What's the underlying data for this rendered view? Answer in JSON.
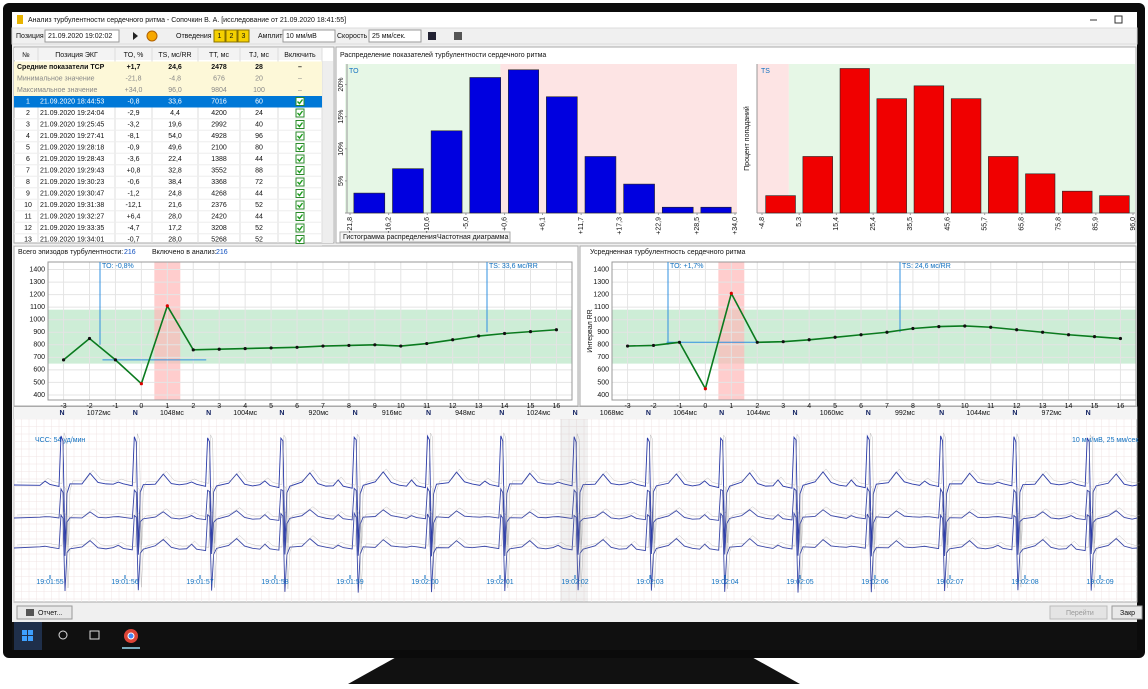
{
  "window": {
    "title": "Анализ турбулентности сердечного ритма - Сопочкин В. А. [исследование от 21.09.2020 18:41:55]",
    "toolbar": {
      "position_label": "Позиция",
      "position": "21.09.2020 19:02:02",
      "leads_label": "Отведения",
      "leads": [
        "1",
        "2",
        "3"
      ],
      "amplitude_label": "Амплитуда",
      "amplitude": "10 мм/мВ",
      "speed_label": "Скорость",
      "speed": "25 мм/сек."
    }
  },
  "table": {
    "headers": [
      "№",
      "Позиция ЭКГ",
      "TO, %",
      "TS, мс/RR",
      "TT, мс",
      "TJ, мс",
      "Включить"
    ],
    "summary": [
      [
        "Средние показатели ТСР",
        "+1,7",
        "24,6",
        "2478",
        "28",
        "–"
      ],
      [
        "Минимальное значение",
        "-21,8",
        "-4,8",
        "676",
        "20",
        "–"
      ],
      [
        "Максимальное значение",
        "+34,0",
        "96,0",
        "9804",
        "100",
        "–"
      ]
    ],
    "rows": [
      [
        "1",
        "21.09.2020 18:44:53",
        "-0,8",
        "33,6",
        "7016",
        "60"
      ],
      [
        "2",
        "21.09.2020 19:24:04",
        "-2,9",
        "4,4",
        "4200",
        "24"
      ],
      [
        "3",
        "21.09.2020 19:25:45",
        "-3,2",
        "19,6",
        "2992",
        "40"
      ],
      [
        "4",
        "21.09.2020 19:27:41",
        "-8,1",
        "54,0",
        "4928",
        "96"
      ],
      [
        "5",
        "21.09.2020 19:28:18",
        "-0,9",
        "49,6",
        "2100",
        "80"
      ],
      [
        "6",
        "21.09.2020 19:28:43",
        "-3,6",
        "22,4",
        "1388",
        "44"
      ],
      [
        "7",
        "21.09.2020 19:29:43",
        "+0,8",
        "32,8",
        "3552",
        "88"
      ],
      [
        "8",
        "21.09.2020 19:30:23",
        "-0,6",
        "38,4",
        "3368",
        "72"
      ],
      [
        "9",
        "21.09.2020 19:30:47",
        "-1,2",
        "24,8",
        "4268",
        "44"
      ],
      [
        "10",
        "21.09.2020 19:31:38",
        "-12,1",
        "21,6",
        "2376",
        "52"
      ],
      [
        "11",
        "21.09.2020 19:32:27",
        "+6,4",
        "28,0",
        "2420",
        "44"
      ],
      [
        "12",
        "21.09.2020 19:33:35",
        "-4,7",
        "17,2",
        "3208",
        "52"
      ],
      [
        "13",
        "21.09.2020 19:34:01",
        "-0,7",
        "28,0",
        "5268",
        "52"
      ]
    ]
  },
  "distribution": {
    "title": "Распределение показателей турбулентности сердечного ритма",
    "tabs": [
      "Гистограмма распределения",
      "Частотная диаграмма"
    ],
    "to_chart": {
      "type": "bar",
      "label": "TO",
      "color": "#0000e0",
      "values": [
        3.1,
        6.9,
        12.8,
        21.1,
        22.3,
        18.1,
        8.8,
        4.5,
        0.9,
        0.9
      ],
      "xticks": [
        {
          "value": -21.8,
          "label": "-21,8"
        },
        {
          "value": -16.2,
          "label": "-16,2"
        },
        {
          "value": -10.6,
          "label": "-10,6"
        },
        {
          "value": -5.0,
          "label": "-5,0"
        },
        {
          "value": 0.6,
          "label": "+0,6"
        },
        {
          "value": 6.1,
          "label": "+6,1"
        },
        {
          "value": 11.7,
          "label": "+11,7"
        },
        {
          "value": 17.3,
          "label": "+17,3"
        },
        {
          "value": 22.9,
          "label": "+22,9"
        },
        {
          "value": 28.5,
          "label": "+28,5"
        },
        {
          "value": 34.0,
          "label": "+34,0"
        }
      ],
      "ylim": [
        0,
        23.2
      ],
      "yticks": [
        {
          "value": 5,
          "label": "5%"
        },
        {
          "value": 10,
          "label": "10%"
        },
        {
          "value": 15,
          "label": "15%"
        },
        {
          "value": 20,
          "label": "20%"
        }
      ]
    },
    "ts_chart": {
      "type": "bar",
      "label": "TS",
      "y_label": "Процент попаданий",
      "color": "#f00000",
      "values": [
        2.7,
        8.8,
        22.5,
        17.8,
        19.8,
        17.8,
        8.8,
        6.1,
        3.4,
        2.7
      ],
      "xticks": [
        {
          "value": -4.8,
          "label": "-4,8"
        },
        {
          "value": 5.3,
          "label": "5,3"
        },
        {
          "value": 15.4,
          "label": "15,4"
        },
        {
          "value": 25.4,
          "label": "25,4"
        },
        {
          "value": 35.5,
          "label": "35,5"
        },
        {
          "value": 45.6,
          "label": "45,6"
        },
        {
          "value": 55.7,
          "label": "55,7"
        },
        {
          "value": 65.8,
          "label": "65,8"
        },
        {
          "value": 75.8,
          "label": "75,8"
        },
        {
          "value": 85.9,
          "label": "85,9"
        },
        {
          "value": 96.0,
          "label": "96,0"
        }
      ],
      "ylim": [
        0,
        23.2
      ]
    }
  },
  "episodes": {
    "total_label": "Всего эпизодов турбулентности:",
    "total": "216",
    "included_label": "Включено в анализ:",
    "included": "216",
    "chart": {
      "type": "line",
      "color": "#0a7a1e",
      "to_annotation": "TO: -0,8%",
      "ts_annotation": "TS: 33,6 мс/RR",
      "x": [
        -3,
        -2,
        -1,
        0,
        1,
        2,
        3,
        4,
        5,
        6,
        7,
        8,
        9,
        10,
        11,
        12,
        13,
        14,
        15,
        16
      ],
      "values": [
        680,
        850,
        680,
        490,
        1110,
        760,
        765,
        770,
        775,
        780,
        790,
        795,
        800,
        790,
        810,
        840,
        870,
        890,
        905,
        920
      ],
      "xlim": [
        -3.6,
        16.6
      ],
      "xticks": [
        -3,
        -2,
        -1,
        0,
        1,
        2,
        3,
        4,
        5,
        6,
        7,
        8,
        9,
        10,
        11,
        12,
        13,
        14,
        15,
        16
      ],
      "ylim": [
        360,
        1460
      ],
      "yticks": [
        400,
        500,
        600,
        700,
        800,
        900,
        1000,
        1100,
        1200,
        1300,
        1400
      ]
    }
  },
  "average": {
    "title": "Усредненная турбулентность сердечного ритма",
    "chart": {
      "type": "line",
      "color": "#0a7a1e",
      "y_label": "Интервал RR",
      "to_annotation": "TO: +1,7%",
      "ts_annotation": "TS: 24,6 мс/RR",
      "x": [
        -3,
        -2,
        -1,
        0,
        1,
        2,
        3,
        4,
        5,
        6,
        7,
        8,
        9,
        10,
        11,
        12,
        13,
        14,
        15,
        16
      ],
      "values": [
        790,
        795,
        820,
        450,
        1210,
        820,
        825,
        840,
        860,
        880,
        900,
        930,
        945,
        950,
        940,
        920,
        900,
        880,
        865,
        850
      ],
      "xlim": [
        -3.6,
        16.6
      ],
      "xticks": [
        -3,
        -2,
        -1,
        0,
        1,
        2,
        3,
        4,
        5,
        6,
        7,
        8,
        9,
        10,
        11,
        12,
        13,
        14,
        15,
        16
      ],
      "ylim": [
        360,
        1460
      ],
      "yticks": [
        400,
        500,
        600,
        700,
        800,
        900,
        1000,
        1100,
        1200,
        1300,
        1400
      ]
    }
  },
  "ecg": {
    "hr": "ЧСС: 54 уд/мин",
    "scale": "10 мм/мВ, 25 мм/сек",
    "beats": [
      "N",
      "N",
      "N",
      "N",
      "N",
      "N",
      "N",
      "N",
      "N",
      "N",
      "N",
      "N",
      "N",
      "N",
      "N"
    ],
    "intervals": [
      "1072мс",
      "1048мс",
      "1004мс",
      "920мс",
      "916мс",
      "948мс",
      "1024мс",
      "1068мс",
      "1064мс",
      "1044мс",
      "1060мс",
      "992мс",
      "1044мс",
      "972мс"
    ],
    "times": [
      "19:01:55",
      "19:01:56",
      "19:01:57",
      "19:01:58",
      "19:01:59",
      "19:02:00",
      "19:02:01",
      "19:02:02",
      "19:02:03",
      "19:02:04",
      "19:02:05",
      "19:02:06",
      "19:02:07",
      "19:02:08",
      "19:02:09"
    ]
  },
  "buttons": {
    "report": "Отчет...",
    "go": "Перейти",
    "close": "Закр"
  }
}
